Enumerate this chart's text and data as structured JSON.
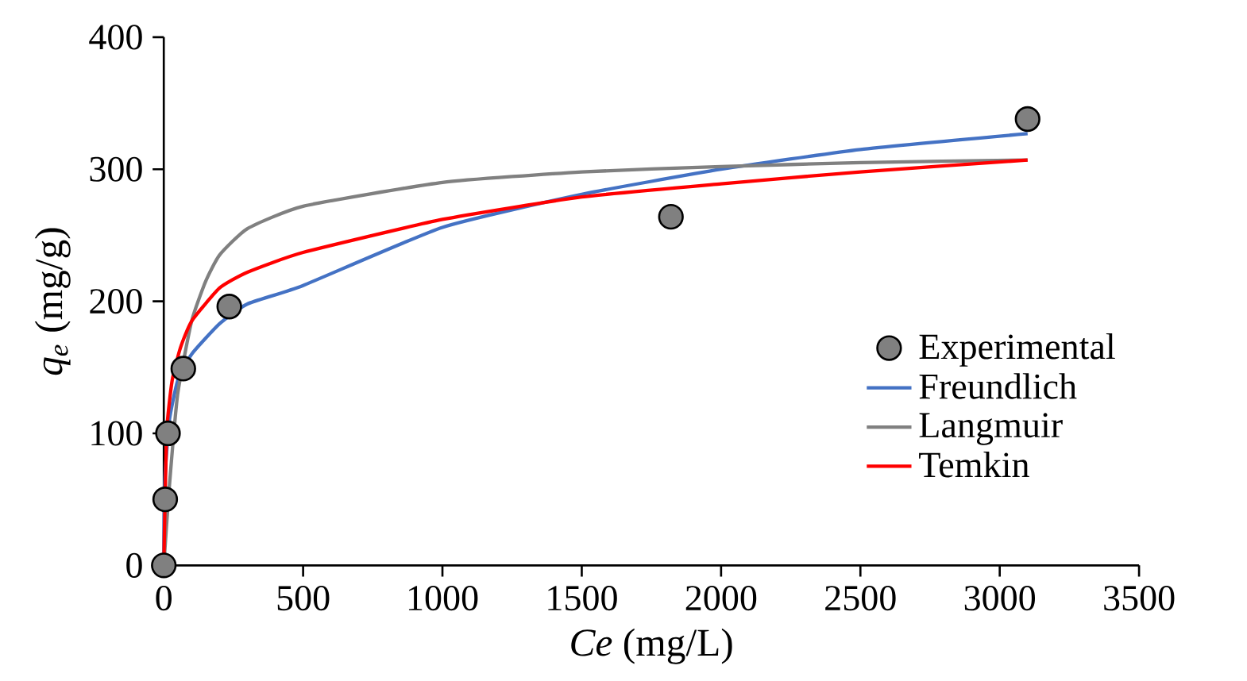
{
  "chart_data": {
    "type": "line",
    "xlabel": "*Ce* (mg/L)",
    "ylabel": "*q$_{e}$* (mg/g)",
    "xlim": [
      0,
      3500
    ],
    "ylim": [
      0,
      400
    ],
    "xticks": [
      0,
      500,
      1000,
      1500,
      2000,
      2500,
      3000,
      3500
    ],
    "yticks": [
      0,
      100,
      200,
      300,
      400
    ],
    "legend": "right",
    "grid": false,
    "series": [
      {
        "name": "Experimental",
        "type": "scatter",
        "color": "#808080",
        "x": [
          0,
          5,
          15,
          70,
          235,
          1820,
          3100
        ],
        "values": [
          0,
          50,
          100,
          149,
          196,
          264,
          338
        ]
      },
      {
        "name": "Freundlich",
        "color": "#4472c4",
        "x": [
          0,
          1,
          5,
          20,
          50,
          100,
          200,
          300,
          500,
          1000,
          1500,
          2000,
          2500,
          3100
        ],
        "values": [
          0,
          40,
          70,
          110,
          140,
          160,
          183,
          198,
          212,
          256,
          281,
          300,
          315,
          327
        ]
      },
      {
        "name": "Langmuir",
        "color": "#808080",
        "x": [
          0,
          20,
          50,
          100,
          150,
          200,
          300,
          500,
          1000,
          1500,
          2000,
          2500,
          3100
        ],
        "values": [
          0,
          60,
          130,
          185,
          215,
          235,
          255,
          272,
          290,
          298,
          302,
          305,
          307
        ]
      },
      {
        "name": "Temkin",
        "color": "#ff0000",
        "x": [
          0,
          10,
          30,
          60,
          100,
          200,
          300,
          500,
          1000,
          1500,
          2000,
          2500,
          3100
        ],
        "values": [
          0,
          100,
          140,
          165,
          185,
          210,
          222,
          237,
          262,
          279,
          289,
          298,
          307
        ]
      }
    ]
  }
}
